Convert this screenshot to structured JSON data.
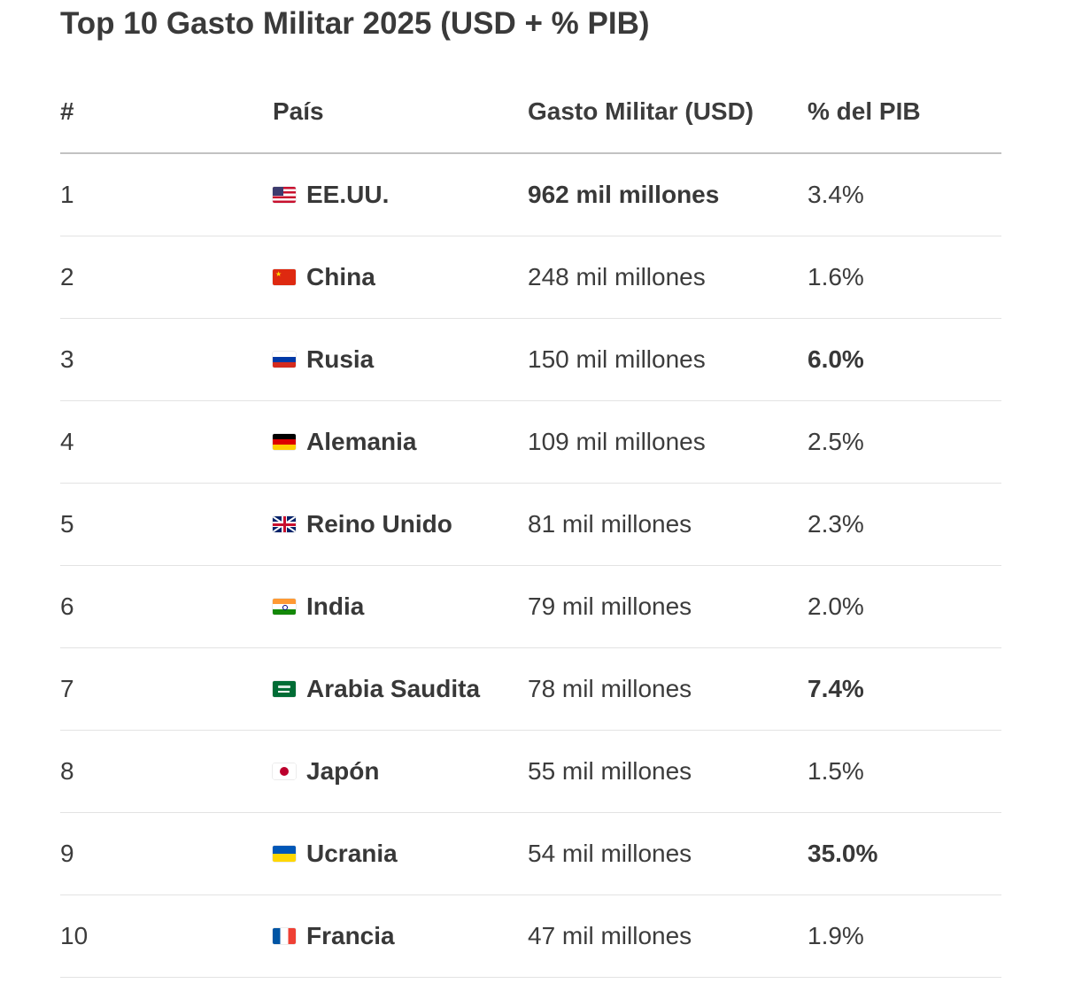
{
  "title": "Top 10 Gasto Militar 2025 (USD + % PIB)",
  "table": {
    "headers": [
      "#",
      "País",
      "Gasto Militar (USD)",
      "% del PIB"
    ],
    "rows": [
      {
        "rank": "1",
        "flag": "us-flag-icon",
        "country": "EE.UU.",
        "spending": "962 mil millones",
        "gdp_pct": "3.4%",
        "spending_bold": true,
        "gdp_bold": false
      },
      {
        "rank": "2",
        "flag": "cn-flag-icon",
        "country": "China",
        "spending": "248 mil millones",
        "gdp_pct": "1.6%",
        "spending_bold": false,
        "gdp_bold": false
      },
      {
        "rank": "3",
        "flag": "ru-flag-icon",
        "country": "Rusia",
        "spending": "150 mil millones",
        "gdp_pct": "6.0%",
        "spending_bold": false,
        "gdp_bold": true
      },
      {
        "rank": "4",
        "flag": "de-flag-icon",
        "country": "Alemania",
        "spending": "109 mil millones",
        "gdp_pct": "2.5%",
        "spending_bold": false,
        "gdp_bold": false
      },
      {
        "rank": "5",
        "flag": "gb-flag-icon",
        "country": "Reino Unido",
        "spending": "81 mil millones",
        "gdp_pct": "2.3%",
        "spending_bold": false,
        "gdp_bold": false
      },
      {
        "rank": "6",
        "flag": "in-flag-icon",
        "country": "India",
        "spending": "79 mil millones",
        "gdp_pct": "2.0%",
        "spending_bold": false,
        "gdp_bold": false
      },
      {
        "rank": "7",
        "flag": "sa-flag-icon",
        "country": "Arabia Saudita",
        "spending": "78 mil millones",
        "gdp_pct": "7.4%",
        "spending_bold": false,
        "gdp_bold": true
      },
      {
        "rank": "8",
        "flag": "jp-flag-icon",
        "country": "Japón",
        "spending": "55 mil millones",
        "gdp_pct": "1.5%",
        "spending_bold": false,
        "gdp_bold": false
      },
      {
        "rank": "9",
        "flag": "ua-flag-icon",
        "country": "Ucrania",
        "spending": "54 mil millones",
        "gdp_pct": "35.0%",
        "spending_bold": false,
        "gdp_bold": true
      },
      {
        "rank": "10",
        "flag": "fr-flag-icon",
        "country": "Francia",
        "spending": "47 mil millones",
        "gdp_pct": "1.9%",
        "spending_bold": false,
        "gdp_bold": false
      }
    ]
  }
}
